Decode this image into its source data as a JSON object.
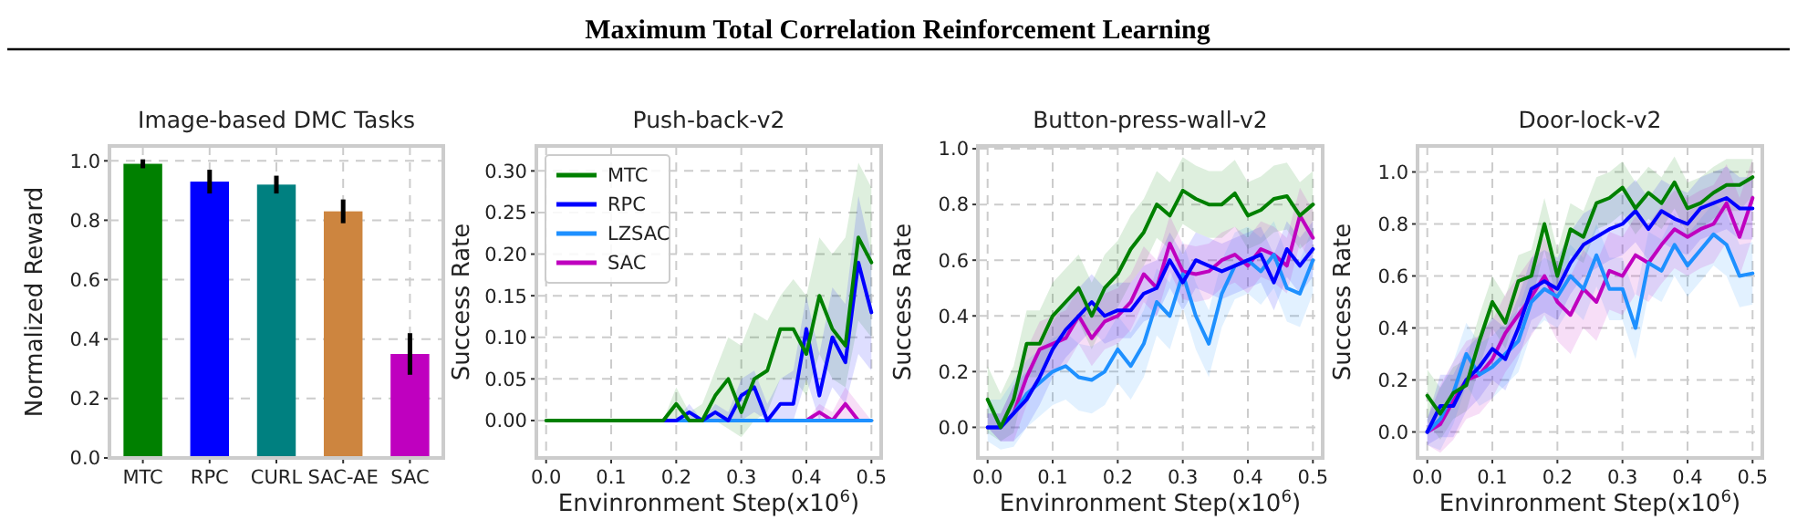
{
  "chart_data": [
    {
      "type": "other",
      "title": "Maximum Total Correlation Reinforcement Learning"
    },
    {
      "type": "bar",
      "title": "Image-based DMC Tasks",
      "ylabel": "Normalized Reward",
      "categories": [
        "MTC",
        "RPC",
        "CURL",
        "SAC-AE",
        "SAC"
      ],
      "values": [
        0.99,
        0.93,
        0.92,
        0.83,
        0.35
      ],
      "errors": [
        0.015,
        0.04,
        0.03,
        0.04,
        0.07
      ],
      "colors": [
        "#008000",
        "#0000ff",
        "#008080",
        "#cd853f",
        "#bf00bf"
      ],
      "ylim": [
        0,
        1.05
      ],
      "yticks": [
        {
          "value": 0,
          "label": "0.0"
        },
        {
          "value": 0.2,
          "label": "0.2"
        },
        {
          "value": 0.4,
          "label": "0.4"
        },
        {
          "value": 0.6,
          "label": "0.6"
        },
        {
          "value": 0.8,
          "label": "0.8"
        },
        {
          "value": 1,
          "label": "1.0"
        }
      ],
      "grid": true
    },
    {
      "type": "line",
      "title": "Push-back-v2",
      "xlabel": "Envinronment Step(x10$^{6}$)",
      "ylabel": "Success Rate",
      "x": [
        0,
        0.02,
        0.04,
        0.06,
        0.08,
        0.1,
        0.12,
        0.14,
        0.16,
        0.18,
        0.2,
        0.22,
        0.24,
        0.26,
        0.28,
        0.3,
        0.32,
        0.34,
        0.36,
        0.38,
        0.4,
        0.42,
        0.44,
        0.46,
        0.48,
        0.5
      ],
      "series": [
        {
          "name": "MTC",
          "color": "#008000",
          "values": [
            0,
            0,
            0,
            0,
            0,
            0,
            0,
            0,
            0,
            0,
            0.02,
            0,
            0,
            0.03,
            0.05,
            0.01,
            0.05,
            0.06,
            0.11,
            0.11,
            0.08,
            0.15,
            0.11,
            0.09,
            0.22,
            0.19
          ],
          "upper": [
            0,
            0,
            0,
            0,
            0,
            0,
            0,
            0,
            0,
            0,
            0.04,
            0.01,
            0.02,
            0.06,
            0.1,
            0.09,
            0.13,
            0.12,
            0.15,
            0.17,
            0.15,
            0.22,
            0.2,
            0.22,
            0.31,
            0.28
          ],
          "lower": [
            0,
            0,
            0,
            0,
            0,
            0,
            0,
            0,
            0,
            0,
            0,
            0,
            0,
            0,
            -0.01,
            -0.02,
            0,
            0.01,
            0.05,
            0.05,
            0.03,
            0.08,
            0.05,
            0.04,
            0.12,
            0.1
          ]
        },
        {
          "name": "RPC",
          "color": "#0000ff",
          "values": [
            null,
            null,
            null,
            null,
            null,
            null,
            null,
            null,
            null,
            0,
            0,
            0.01,
            0,
            0.01,
            0,
            0.03,
            0.04,
            0,
            0.02,
            0.02,
            0.11,
            0.03,
            0.1,
            0.07,
            0.19,
            0.13
          ],
          "upper": [
            0,
            0,
            0,
            0,
            0,
            0,
            0,
            0,
            0,
            0,
            0,
            0.02,
            0,
            0.02,
            0.01,
            0.05,
            0.06,
            0.02,
            0.05,
            0.06,
            0.15,
            0.08,
            0.16,
            0.14,
            0.27,
            0.2
          ],
          "lower": [
            0,
            0,
            0,
            0,
            0,
            0,
            0,
            0,
            0,
            0,
            0,
            0,
            0,
            0,
            0,
            0,
            0.01,
            0,
            0,
            0,
            0.05,
            0,
            0.04,
            0.02,
            0.08,
            0.06
          ]
        },
        {
          "name": "LZSAC",
          "color": "#1e90ff",
          "values": [
            null,
            null,
            null,
            null,
            null,
            null,
            null,
            null,
            null,
            0,
            0,
            0,
            0,
            0,
            0,
            0,
            0,
            0,
            0,
            0,
            0,
            0,
            0,
            0,
            0,
            0
          ]
        },
        {
          "name": "SAC",
          "color": "#bf00bf",
          "values": [
            null,
            null,
            null,
            null,
            null,
            null,
            null,
            null,
            null,
            null,
            null,
            null,
            null,
            null,
            null,
            null,
            null,
            null,
            null,
            null,
            0,
            0.01,
            0,
            0.02,
            0,
            null
          ],
          "upper": [
            0,
            0,
            0,
            0,
            0,
            0,
            0,
            0,
            0,
            0,
            0,
            0,
            0,
            0,
            0,
            0,
            0,
            0,
            0,
            0,
            0,
            0.02,
            0.01,
            0.04,
            0.02,
            0
          ],
          "lower": [
            0,
            0,
            0,
            0,
            0,
            0,
            0,
            0,
            0,
            0,
            0,
            0,
            0,
            0,
            0,
            0,
            0,
            0,
            0,
            0,
            0,
            0,
            0,
            0,
            0,
            0
          ]
        }
      ],
      "xlim": [
        -0.015,
        0.515
      ],
      "ylim": [
        -0.045,
        0.33
      ],
      "xticks": [
        {
          "value": 0,
          "label": "0.0"
        },
        {
          "value": 0.1,
          "label": "0.1"
        },
        {
          "value": 0.2,
          "label": "0.2"
        },
        {
          "value": 0.3,
          "label": "0.3"
        },
        {
          "value": 0.4,
          "label": "0.4"
        },
        {
          "value": 0.5,
          "label": "0.5"
        }
      ],
      "yticks": [
        {
          "value": 0,
          "label": "0.00"
        },
        {
          "value": 0.05,
          "label": "0.05"
        },
        {
          "value": 0.1,
          "label": "0.10"
        },
        {
          "value": 0.15,
          "label": "0.15"
        },
        {
          "value": 0.2,
          "label": "0.20"
        },
        {
          "value": 0.25,
          "label": "0.25"
        },
        {
          "value": 0.3,
          "label": "0.30"
        }
      ],
      "grid": true,
      "legend": "top left"
    },
    {
      "type": "line",
      "title": "Button-press-wall-v2",
      "xlabel": "Envinronment Step(x10$^{6}$)",
      "ylabel": "Success Rate",
      "x": [
        0,
        0.02,
        0.04,
        0.06,
        0.08,
        0.1,
        0.12,
        0.14,
        0.16,
        0.18,
        0.2,
        0.22,
        0.24,
        0.26,
        0.28,
        0.3,
        0.32,
        0.34,
        0.36,
        0.38,
        0.4,
        0.42,
        0.44,
        0.46,
        0.48,
        0.5
      ],
      "series": [
        {
          "color": "#008000",
          "values": [
            0.1,
            0,
            0.1,
            0.3,
            0.3,
            0.4,
            0.45,
            0.5,
            0.4,
            0.5,
            0.55,
            0.64,
            0.7,
            0.8,
            0.76,
            0.85,
            0.82,
            0.8,
            0.8,
            0.84,
            0.76,
            0.78,
            0.82,
            0.83,
            0.76,
            0.8
          ],
          "upper": [
            0.22,
            0.12,
            0.22,
            0.42,
            0.42,
            0.52,
            0.57,
            0.62,
            0.52,
            0.62,
            0.67,
            0.76,
            0.82,
            0.92,
            0.88,
            0.97,
            0.94,
            0.92,
            0.92,
            0.96,
            0.88,
            0.9,
            0.94,
            0.95,
            0.88,
            0.92
          ],
          "lower": [
            -0.02,
            -0.05,
            -0.02,
            0.18,
            0.18,
            0.28,
            0.33,
            0.38,
            0.28,
            0.38,
            0.43,
            0.52,
            0.58,
            0.68,
            0.64,
            0.73,
            0.7,
            0.68,
            0.68,
            0.72,
            0.64,
            0.66,
            0.7,
            0.71,
            0.64,
            0.68
          ]
        },
        {
          "color": "#0000ff",
          "values": [
            0,
            0,
            0.05,
            0.1,
            0.18,
            0.28,
            0.35,
            0.4,
            0.45,
            0.4,
            0.42,
            0.42,
            0.48,
            0.5,
            0.6,
            0.52,
            0.6,
            0.58,
            0.56,
            0.58,
            0.6,
            0.62,
            0.52,
            0.64,
            0.58,
            0.64
          ],
          "upper": [
            0.05,
            0.05,
            0.15,
            0.2,
            0.28,
            0.38,
            0.45,
            0.5,
            0.55,
            0.5,
            0.52,
            0.52,
            0.58,
            0.6,
            0.7,
            0.62,
            0.7,
            0.68,
            0.66,
            0.68,
            0.7,
            0.72,
            0.62,
            0.74,
            0.68,
            0.74
          ],
          "lower": [
            0,
            -0.05,
            -0.05,
            0,
            0.08,
            0.18,
            0.25,
            0.3,
            0.35,
            0.3,
            0.32,
            0.32,
            0.38,
            0.4,
            0.5,
            0.42,
            0.5,
            0.48,
            0.46,
            0.48,
            0.5,
            0.52,
            0.42,
            0.54,
            0.48,
            0.54
          ]
        },
        {
          "color": "#1e90ff",
          "values": [
            0,
            0,
            0.05,
            0.12,
            0.16,
            0.2,
            0.22,
            0.18,
            0.17,
            0.2,
            0.28,
            0.22,
            0.3,
            0.45,
            0.4,
            0.55,
            0.4,
            0.3,
            0.48,
            0.58,
            0.6,
            0.56,
            0.62,
            0.5,
            0.48,
            0.6
          ],
          "upper": [
            0.1,
            0.1,
            0.17,
            0.24,
            0.28,
            0.32,
            0.34,
            0.3,
            0.29,
            0.32,
            0.4,
            0.34,
            0.42,
            0.57,
            0.52,
            0.67,
            0.52,
            0.42,
            0.6,
            0.7,
            0.72,
            0.68,
            0.74,
            0.62,
            0.6,
            0.72
          ],
          "lower": [
            -0.05,
            -0.08,
            -0.07,
            0,
            0.04,
            0.08,
            0.1,
            0.06,
            0.05,
            0.08,
            0.16,
            0.1,
            0.18,
            0.33,
            0.28,
            0.43,
            0.28,
            0.18,
            0.36,
            0.46,
            0.48,
            0.44,
            0.5,
            0.38,
            0.36,
            0.48
          ]
        },
        {
          "color": "#bf00bf",
          "values": [
            0,
            0,
            0.05,
            0.18,
            0.28,
            0.3,
            0.32,
            0.4,
            0.32,
            0.38,
            0.4,
            0.45,
            0.55,
            0.5,
            0.66,
            0.56,
            0.55,
            0.56,
            0.6,
            0.62,
            0.58,
            0.64,
            0.62,
            0.58,
            0.76,
            0.68
          ],
          "upper": [
            0.05,
            0.05,
            0.15,
            0.28,
            0.38,
            0.4,
            0.42,
            0.5,
            0.42,
            0.48,
            0.5,
            0.55,
            0.65,
            0.6,
            0.76,
            0.66,
            0.65,
            0.66,
            0.7,
            0.72,
            0.68,
            0.74,
            0.72,
            0.68,
            0.86,
            0.78
          ],
          "lower": [
            0,
            -0.05,
            -0.05,
            0.08,
            0.18,
            0.2,
            0.22,
            0.3,
            0.22,
            0.28,
            0.3,
            0.35,
            0.45,
            0.4,
            0.56,
            0.46,
            0.45,
            0.46,
            0.5,
            0.52,
            0.48,
            0.54,
            0.52,
            0.48,
            0.66,
            0.58
          ]
        }
      ],
      "xlim": [
        -0.015,
        0.515
      ],
      "ylim": [
        -0.11,
        1.01
      ],
      "xticks": [
        {
          "value": 0,
          "label": "0.0"
        },
        {
          "value": 0.1,
          "label": "0.1"
        },
        {
          "value": 0.2,
          "label": "0.2"
        },
        {
          "value": 0.3,
          "label": "0.3"
        },
        {
          "value": 0.4,
          "label": "0.4"
        },
        {
          "value": 0.5,
          "label": "0.5"
        }
      ],
      "yticks": [
        {
          "value": 0,
          "label": "0.0"
        },
        {
          "value": 0.2,
          "label": "0.2"
        },
        {
          "value": 0.4,
          "label": "0.4"
        },
        {
          "value": 0.6,
          "label": "0.6"
        },
        {
          "value": 0.8,
          "label": "0.8"
        },
        {
          "value": 1,
          "label": "1.0"
        }
      ],
      "grid": true
    },
    {
      "type": "line",
      "title": "Door-lock-v2",
      "xlabel": "Envinronment Step(x10$^{6}$)",
      "ylabel": "Success Rate",
      "x": [
        0,
        0.02,
        0.04,
        0.06,
        0.08,
        0.1,
        0.12,
        0.14,
        0.16,
        0.18,
        0.2,
        0.22,
        0.24,
        0.26,
        0.28,
        0.3,
        0.32,
        0.34,
        0.36,
        0.38,
        0.4,
        0.42,
        0.44,
        0.46,
        0.48,
        0.5
      ],
      "series": [
        {
          "color": "#008000",
          "values": [
            0.14,
            0.07,
            0.15,
            0.18,
            0.35,
            0.5,
            0.42,
            0.58,
            0.6,
            0.8,
            0.6,
            0.78,
            0.75,
            0.88,
            0.9,
            0.94,
            0.86,
            0.92,
            0.88,
            0.96,
            0.86,
            0.88,
            0.92,
            0.95,
            0.95,
            0.98
          ],
          "upper": [
            0.24,
            0.17,
            0.25,
            0.28,
            0.45,
            0.6,
            0.52,
            0.68,
            0.7,
            0.9,
            0.7,
            0.88,
            0.85,
            0.98,
            1.0,
            1.04,
            0.96,
            1.02,
            0.98,
            1.06,
            0.96,
            0.98,
            1.02,
            1.05,
            1.05,
            1.05
          ],
          "lower": [
            0.04,
            -0.03,
            0.05,
            0.08,
            0.25,
            0.4,
            0.32,
            0.48,
            0.5,
            0.7,
            0.5,
            0.68,
            0.65,
            0.78,
            0.8,
            0.84,
            0.76,
            0.82,
            0.78,
            0.86,
            0.76,
            0.78,
            0.82,
            0.85,
            0.85,
            0.91
          ]
        },
        {
          "color": "#0000ff",
          "values": [
            0,
            0.1,
            0.1,
            0.2,
            0.25,
            0.32,
            0.28,
            0.4,
            0.55,
            0.58,
            0.55,
            0.65,
            0.72,
            0.75,
            0.78,
            0.8,
            0.85,
            0.78,
            0.85,
            0.82,
            0.8,
            0.86,
            0.88,
            0.9,
            0.86,
            0.86
          ],
          "upper": [
            0.05,
            0.22,
            0.22,
            0.32,
            0.37,
            0.44,
            0.4,
            0.52,
            0.67,
            0.7,
            0.67,
            0.77,
            0.84,
            0.87,
            0.9,
            0.92,
            0.97,
            0.9,
            0.97,
            0.94,
            0.92,
            0.98,
            1.0,
            1.02,
            0.98,
            0.98
          ],
          "lower": [
            -0.05,
            -0.02,
            -0.02,
            0.08,
            0.13,
            0.2,
            0.16,
            0.28,
            0.43,
            0.46,
            0.43,
            0.53,
            0.6,
            0.63,
            0.66,
            0.68,
            0.73,
            0.66,
            0.73,
            0.7,
            0.68,
            0.74,
            0.76,
            0.78,
            0.74,
            0.74
          ]
        },
        {
          "color": "#1e90ff",
          "values": [
            0,
            0.05,
            0.15,
            0.3,
            0.22,
            0.25,
            0.3,
            0.35,
            0.5,
            0.55,
            0.52,
            0.6,
            0.55,
            0.68,
            0.55,
            0.55,
            0.4,
            0.65,
            0.62,
            0.72,
            0.64,
            0.7,
            0.76,
            0.72,
            0.6,
            0.61
          ],
          "upper": [
            0.05,
            0.17,
            0.27,
            0.42,
            0.34,
            0.37,
            0.42,
            0.47,
            0.62,
            0.67,
            0.64,
            0.72,
            0.67,
            0.8,
            0.67,
            0.67,
            0.52,
            0.77,
            0.74,
            0.84,
            0.76,
            0.82,
            0.88,
            0.84,
            0.72,
            0.73
          ],
          "lower": [
            -0.05,
            -0.07,
            0.03,
            0.18,
            0.1,
            0.13,
            0.18,
            0.23,
            0.38,
            0.43,
            0.4,
            0.48,
            0.43,
            0.56,
            0.43,
            0.43,
            0.28,
            0.53,
            0.5,
            0.6,
            0.52,
            0.58,
            0.64,
            0.6,
            0.48,
            0.49
          ]
        },
        {
          "color": "#bf00bf",
          "values": [
            0,
            0.03,
            0.12,
            0.2,
            0.22,
            0.28,
            0.38,
            0.45,
            0.52,
            0.6,
            0.5,
            0.45,
            0.55,
            0.5,
            0.62,
            0.6,
            0.68,
            0.65,
            0.72,
            0.78,
            0.75,
            0.78,
            0.8,
            0.88,
            0.75,
            0.9
          ],
          "upper": [
            0.05,
            0.18,
            0.27,
            0.35,
            0.37,
            0.43,
            0.53,
            0.6,
            0.67,
            0.75,
            0.65,
            0.6,
            0.7,
            0.65,
            0.77,
            0.75,
            0.83,
            0.8,
            0.87,
            0.93,
            0.9,
            0.93,
            0.95,
            1.03,
            0.9,
            1.05
          ],
          "lower": [
            -0.05,
            -0.08,
            -0.03,
            0.05,
            0.07,
            0.13,
            0.23,
            0.3,
            0.37,
            0.45,
            0.35,
            0.3,
            0.4,
            0.35,
            0.47,
            0.45,
            0.53,
            0.5,
            0.57,
            0.63,
            0.6,
            0.63,
            0.65,
            0.73,
            0.6,
            0.75
          ]
        }
      ],
      "xlim": [
        -0.015,
        0.515
      ],
      "ylim": [
        -0.1,
        1.1
      ],
      "xticks": [
        {
          "value": 0,
          "label": "0.0"
        },
        {
          "value": 0.1,
          "label": "0.1"
        },
        {
          "value": 0.2,
          "label": "0.2"
        },
        {
          "value": 0.3,
          "label": "0.3"
        },
        {
          "value": 0.4,
          "label": "0.4"
        },
        {
          "value": 0.5,
          "label": "0.5"
        }
      ],
      "yticks": [
        {
          "value": 0,
          "label": "0.0"
        },
        {
          "value": 0.2,
          "label": "0.2"
        },
        {
          "value": 0.4,
          "label": "0.4"
        },
        {
          "value": 0.6,
          "label": "0.6"
        },
        {
          "value": 0.8,
          "label": "0.8"
        },
        {
          "value": 1,
          "label": "1.0"
        }
      ],
      "grid": true
    }
  ]
}
